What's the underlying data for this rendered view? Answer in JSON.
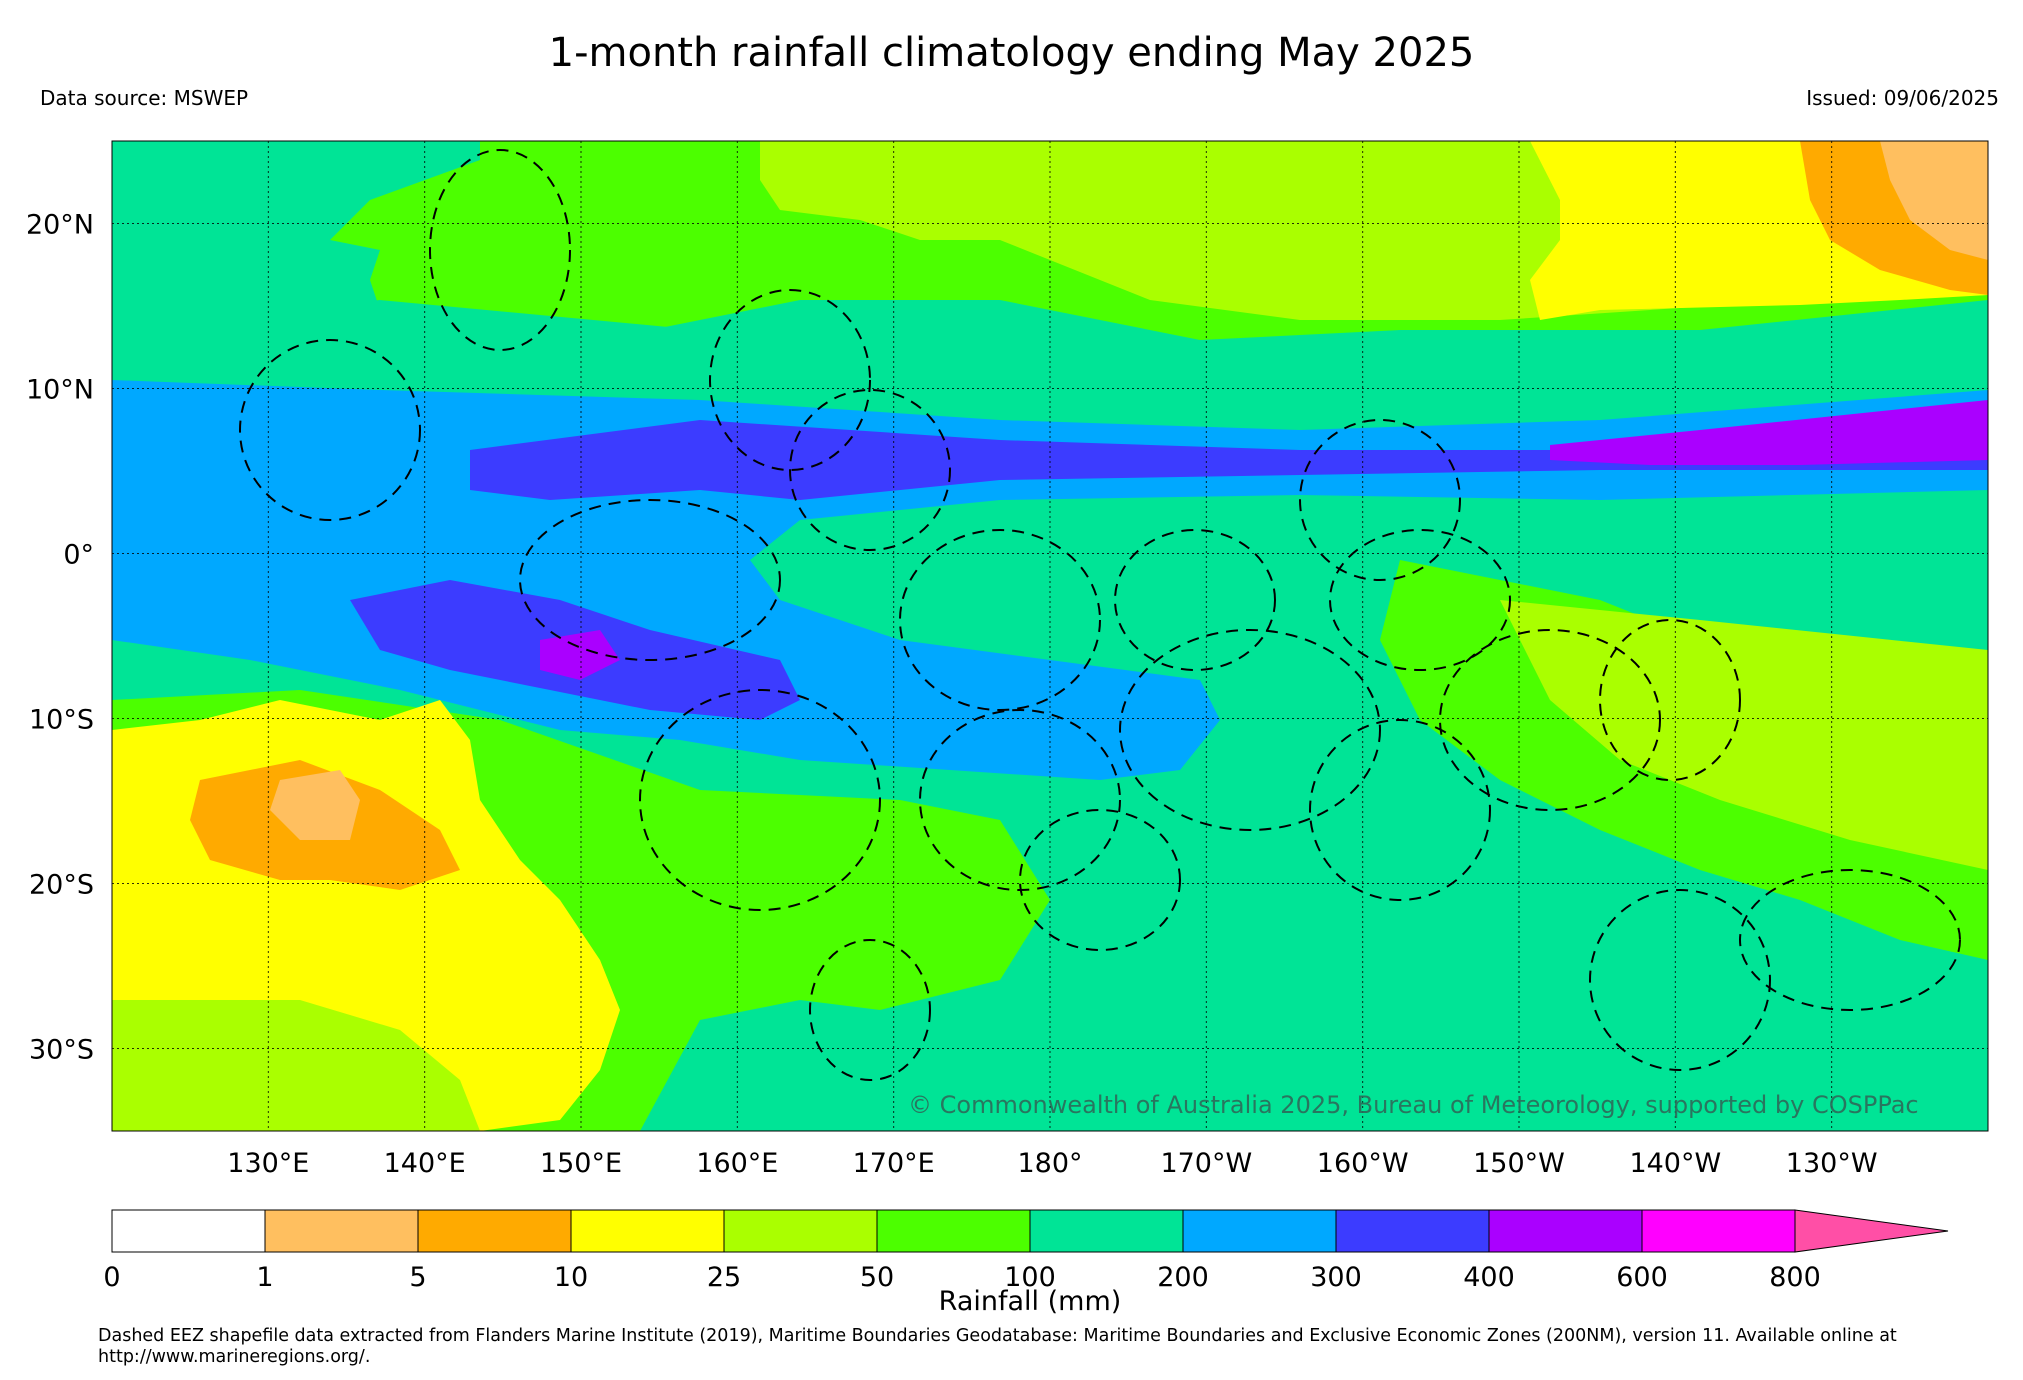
{
  "header": {
    "title": "1-month rainfall climatology ending May 2025",
    "source": "Data source: MSWEP",
    "issued": "Issued: 09/06/2025"
  },
  "map": {
    "lon_range": [
      120,
      240
    ],
    "lat_range": [
      -35,
      25
    ],
    "lon_ticks": [
      {
        "value": 130,
        "label": "130°E"
      },
      {
        "value": 140,
        "label": "140°E"
      },
      {
        "value": 150,
        "label": "150°E"
      },
      {
        "value": 160,
        "label": "160°E"
      },
      {
        "value": 170,
        "label": "170°E"
      },
      {
        "value": 180,
        "label": "180°"
      },
      {
        "value": 190,
        "label": "170°W"
      },
      {
        "value": 200,
        "label": "160°W"
      },
      {
        "value": 210,
        "label": "150°W"
      },
      {
        "value": 220,
        "label": "140°W"
      },
      {
        "value": 230,
        "label": "130°W"
      }
    ],
    "lat_ticks": [
      {
        "value": 20,
        "label": "20°N"
      },
      {
        "value": 10,
        "label": "10°N"
      },
      {
        "value": 0,
        "label": "0°"
      },
      {
        "value": -10,
        "label": "10°S"
      },
      {
        "value": -20,
        "label": "20°S"
      },
      {
        "value": -30,
        "label": "30°S"
      }
    ],
    "copyright": "© Commonwealth of Australia 2025, Bureau of Meteorology, supported by COSPPac"
  },
  "colorbar": {
    "label": "Rainfall (mm)",
    "ticks": [
      "0",
      "1",
      "5",
      "10",
      "25",
      "50",
      "100",
      "200",
      "300",
      "400",
      "600",
      "800"
    ],
    "colors": [
      "#ffffff",
      "#ffbf5f",
      "#ffaa00",
      "#ffff00",
      "#aaff00",
      "#4cff00",
      "#00e496",
      "#00a8ff",
      "#3c3cff",
      "#aa00ff",
      "#ff00ff",
      "#ff4fa6"
    ]
  },
  "footer": {
    "text": "Dashed EEZ shapefile data extracted from Flanders Marine Institute (2019), Maritime Boundaries Geodatabase: Maritime Boundaries and Exclusive Economic Zones (200NM), version 11. Available online at http://www.marineregions.org/."
  }
}
